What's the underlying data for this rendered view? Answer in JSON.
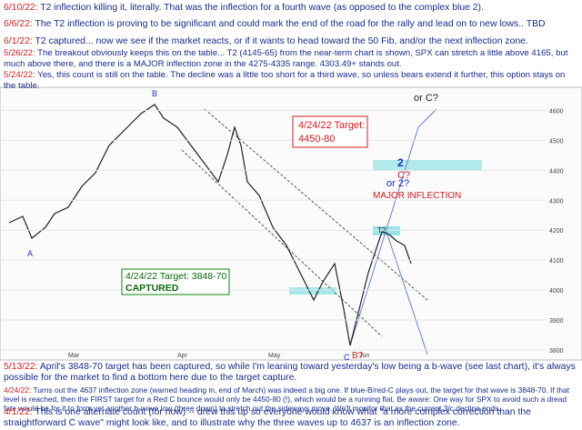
{
  "notes_top": [
    {
      "date": "6/10/22:",
      "text": "T2 inflection killing it, literally.  That was the inflection for a fourth wave (as opposed to the complex blue 2)."
    },
    {
      "date": "6/6/22:",
      "text": "The T2 inflection is proving to be significant and could mark the end of the road for the rally and lead on to new lows.. TBD"
    },
    {
      "date": "6/1/22:",
      "text": "T2 captured... now we see if the market reacts, or if it wants to head toward the 50 Fib, and/or the next inflection zone."
    },
    {
      "date": "5/26/22:",
      "text": "The breakout obviously keeps this on the table... T2 (4145-65) from the near-term chart is shown, SPX can stretch a little above 4165, but much above there, and there is a MAJOR inflection zone in the 4275-4335 range.  4303.49+ stands out."
    },
    {
      "date": "5/24/22:",
      "text": "Yes, this count is still on the table.  The decline was a little too short for a third wave, so unless bears extend it further, this option stays on the table."
    }
  ],
  "chart": {
    "labels": {
      "target_up": "4/24/22 Target:",
      "target_up_range": "4450-80",
      "or_c": "or C?",
      "two": "2",
      "c_q": "C?",
      "or_two": "or 2?",
      "major": "MAJOR INFLECTION",
      "target_down": "4/24/22 Target: 3848-70",
      "captured": "CAPTURED",
      "b_top": "B",
      "a": "A",
      "t2": "T2",
      "c_low": "C",
      "b_q": "B?"
    },
    "xticks": [
      "Mar",
      "Apr",
      "May",
      "Jun"
    ],
    "yticks": [
      3800,
      3900,
      4000,
      4100,
      4200,
      4300,
      4400,
      4500,
      4600
    ],
    "ylim": [
      3800,
      4650
    ]
  },
  "notes_bottom": [
    {
      "date": "5/13/22:",
      "text": "April's 3848-70 target has been captured, so while I'm leaning toward yesterday's low being a b-wave (see last chart), it's always possible for the market to find a bottom here due to the target capture."
    },
    {
      "date": "4/24/22:",
      "text": "Turns out the 4637 inflection zone (warned heading in, end of March) was indeed a big one.  If blue-B/red-C plays out, the target for that wave is 3848-70.  If that level is reached, then the FIRST target for a Red C bounce would only be 4450-80 (!), which would be a running flat.  Be aware:  One way for SPX to avoid such a dread fate would be for it to form yet another b-wave low (three down) to stretch out the sideways move.  We'll monitor that as the current 3/c decline ends."
    },
    {
      "date": "4/1/22:",
      "text": "This is one alternate count (for now) -- drew this up so everyone would know what \"a more complex correction than the straightforward C wave\" might look like, and to illustrate why the three waves up to 4637 is an inflection zone."
    }
  ]
}
